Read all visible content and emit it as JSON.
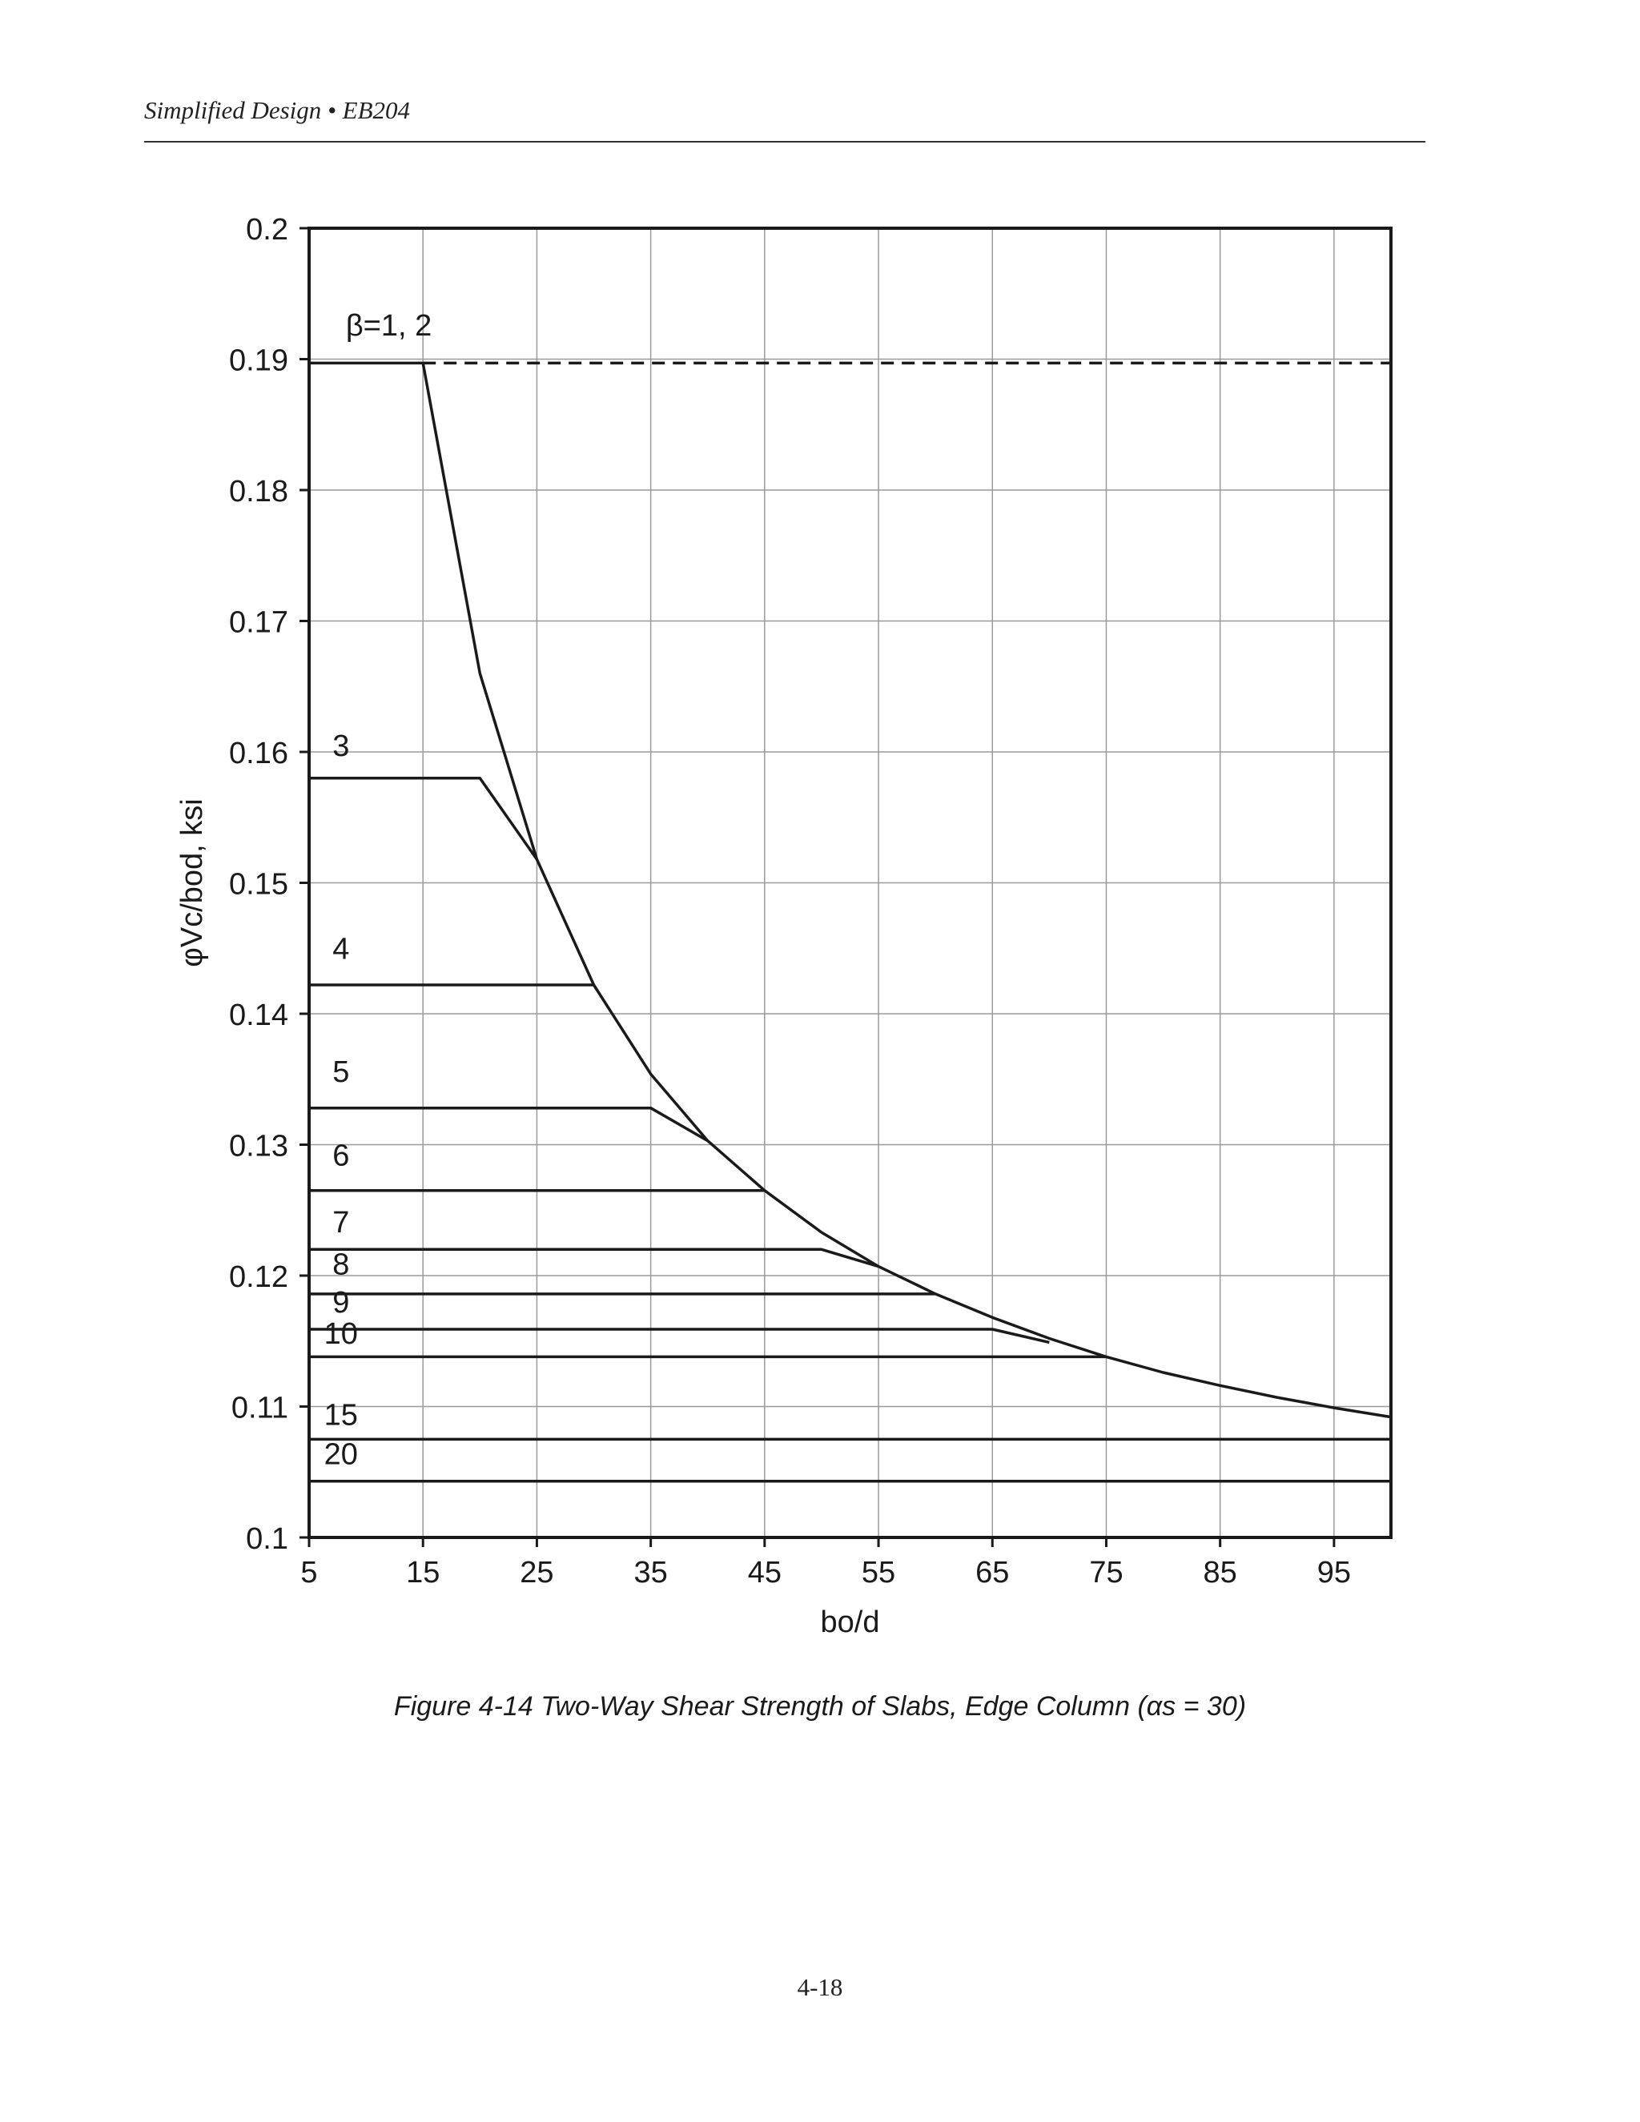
{
  "header": {
    "running_title": "Simplified Design • EB204"
  },
  "caption": {
    "text": "Figure 4-14 Two-Way Shear Strength of Slabs, Edge Column (αs = 30)"
  },
  "footer": {
    "page_number": "4-18"
  },
  "chart_data": {
    "type": "line",
    "title": "",
    "xlabel": "bo/d",
    "ylabel": "φVc/bod, ksi",
    "xlim": [
      5,
      100
    ],
    "ylim": [
      0.1,
      0.2
    ],
    "xticks": [
      5,
      15,
      25,
      35,
      45,
      55,
      65,
      75,
      85,
      95
    ],
    "xgrid": [
      15,
      25,
      35,
      45,
      55,
      65,
      75,
      85,
      95
    ],
    "yticks": [
      0.1,
      0.11,
      0.12,
      0.13,
      0.14,
      0.15,
      0.16,
      0.17,
      0.18,
      0.19,
      0.2
    ],
    "ytick_labels": [
      "0.1",
      "0.11",
      "0.12",
      "0.13",
      "0.14",
      "0.15",
      "0.16",
      "0.17",
      "0.18",
      "0.19",
      "0.2"
    ],
    "xtick_labels": [
      "5",
      "15",
      "25",
      "35",
      "45",
      "55",
      "65",
      "75",
      "85",
      "95"
    ],
    "grid": true,
    "series": [
      {
        "name": "β=1, 2",
        "label": "β=1, 2",
        "style": "solid",
        "x": [
          5,
          15
        ],
        "y": [
          0.1897,
          0.1897
        ]
      },
      {
        "name": "β=1, 2 (limit)",
        "style": "dashed",
        "x": [
          15,
          100
        ],
        "y": [
          0.1897,
          0.1897
        ]
      },
      {
        "name": "3",
        "label": "3",
        "style": "solid",
        "x": [
          5,
          20,
          25
        ],
        "y": [
          0.158,
          0.158,
          0.1518
        ]
      },
      {
        "name": "4",
        "label": "4",
        "style": "solid",
        "x": [
          5,
          30
        ],
        "y": [
          0.1422,
          0.1422
        ]
      },
      {
        "name": "5",
        "label": "5",
        "style": "solid",
        "x": [
          5,
          35,
          40
        ],
        "y": [
          0.1328,
          0.1328,
          0.1303
        ]
      },
      {
        "name": "6",
        "label": "6",
        "style": "solid",
        "x": [
          5,
          45
        ],
        "y": [
          0.1265,
          0.1265
        ]
      },
      {
        "name": "7",
        "label": "7",
        "style": "solid",
        "x": [
          5,
          50,
          55
        ],
        "y": [
          0.122,
          0.122,
          0.1207
        ]
      },
      {
        "name": "8",
        "label": "8",
        "style": "solid",
        "x": [
          5,
          60
        ],
        "y": [
          0.1186,
          0.1186
        ]
      },
      {
        "name": "9",
        "label": "9",
        "style": "solid",
        "x": [
          5,
          65,
          70
        ],
        "y": [
          0.1159,
          0.1159,
          0.1149
        ]
      },
      {
        "name": "10",
        "label": "10",
        "style": "solid",
        "x": [
          5,
          75
        ],
        "y": [
          0.1138,
          0.1138
        ]
      },
      {
        "name": "15",
        "label": "15",
        "style": "solid",
        "x": [
          5,
          100
        ],
        "y": [
          0.1075,
          0.1075
        ]
      },
      {
        "name": "20",
        "label": "20",
        "style": "solid",
        "x": [
          5,
          100
        ],
        "y": [
          0.1043,
          0.1043
        ]
      },
      {
        "name": "governing curve",
        "style": "solid",
        "x": [
          15,
          20,
          25,
          30,
          35,
          40,
          45,
          50,
          55,
          60,
          65,
          70,
          75,
          80,
          85,
          90,
          95,
          100
        ],
        "y": [
          0.1897,
          0.166,
          0.1518,
          0.1422,
          0.1354,
          0.1303,
          0.1265,
          0.1233,
          0.1207,
          0.1186,
          0.1168,
          0.1152,
          0.1138,
          0.1126,
          0.1116,
          0.1107,
          0.1099,
          0.1092
        ]
      }
    ],
    "curve_labels": [
      {
        "text": "β=1, 2",
        "x": 12,
        "y": 0.1918
      },
      {
        "text": "3",
        "x": 7.8,
        "y": 0.1597
      },
      {
        "text": "4",
        "x": 7.8,
        "y": 0.1442
      },
      {
        "text": "5",
        "x": 7.8,
        "y": 0.1348
      },
      {
        "text": "6",
        "x": 7.8,
        "y": 0.1284
      },
      {
        "text": "7",
        "x": 7.8,
        "y": 0.1233
      },
      {
        "text": "8",
        "x": 7.8,
        "y": 0.1201
      },
      {
        "text": "9",
        "x": 7.8,
        "y": 0.1172
      },
      {
        "text": "10",
        "x": 7.8,
        "y": 0.1148
      },
      {
        "text": "15",
        "x": 7.8,
        "y": 0.1086
      },
      {
        "text": "20",
        "x": 7.8,
        "y": 0.1056
      }
    ]
  }
}
